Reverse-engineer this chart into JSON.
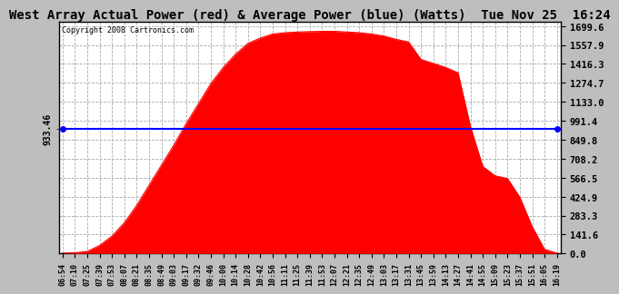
{
  "title": "West Array Actual Power (red) & Average Power (blue) (Watts)  Tue Nov 25  16:24",
  "copyright": "Copyright 2008 Cartronics.com",
  "average_power": 933.46,
  "y_max": 1699.6,
  "y_min": 0.0,
  "y_ticks": [
    0.0,
    141.6,
    283.3,
    424.9,
    566.5,
    708.2,
    849.8,
    991.4,
    1133.0,
    1274.7,
    1416.3,
    1557.9,
    1699.6
  ],
  "fill_color": "#FF0000",
  "line_color": "#0000FF",
  "background_color": "#BEBEBE",
  "plot_background": "#FFFFFF",
  "title_fontsize": 11,
  "x_labels": [
    "06:54",
    "07:10",
    "07:25",
    "07:39",
    "07:53",
    "08:07",
    "08:21",
    "08:35",
    "08:49",
    "09:03",
    "09:17",
    "09:32",
    "09:46",
    "10:00",
    "10:14",
    "10:28",
    "10:42",
    "10:56",
    "11:11",
    "11:25",
    "11:39",
    "11:53",
    "12:07",
    "12:21",
    "12:35",
    "12:49",
    "13:03",
    "13:17",
    "13:31",
    "13:45",
    "13:59",
    "14:13",
    "14:27",
    "14:41",
    "14:55",
    "15:09",
    "15:23",
    "15:37",
    "15:51",
    "16:05",
    "16:19"
  ],
  "power_curve": [
    2,
    5,
    15,
    60,
    130,
    230,
    360,
    510,
    660,
    810,
    970,
    1120,
    1270,
    1390,
    1490,
    1570,
    1610,
    1640,
    1650,
    1655,
    1658,
    1660,
    1660,
    1655,
    1650,
    1640,
    1625,
    1600,
    1580,
    1450,
    1420,
    1390,
    1350,
    950,
    650,
    580,
    560,
    420,
    200,
    30,
    2
  ]
}
